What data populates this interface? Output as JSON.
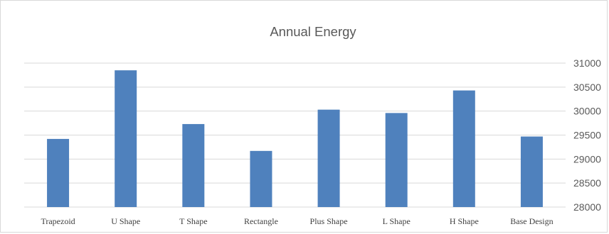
{
  "chart_data": {
    "type": "bar",
    "title": "Annual Energy",
    "xlabel": "",
    "ylabel": "",
    "categories": [
      "Trapezoid",
      "U Shape",
      "T Shape",
      "Rectangle",
      "Plus Shape",
      "L Shape",
      "H Shape",
      "Base Design"
    ],
    "series": [
      {
        "values": [
          29420,
          30850,
          29730,
          29170,
          30030,
          29960,
          30430,
          29470
        ]
      }
    ],
    "ylim": [
      28000,
      31000
    ],
    "yticks": [
      28000,
      28500,
      29000,
      29500,
      30000,
      30500,
      31000
    ],
    "y_axis_position": "right",
    "grid": true,
    "legend": "none",
    "bar_color": "#4f81bd"
  }
}
